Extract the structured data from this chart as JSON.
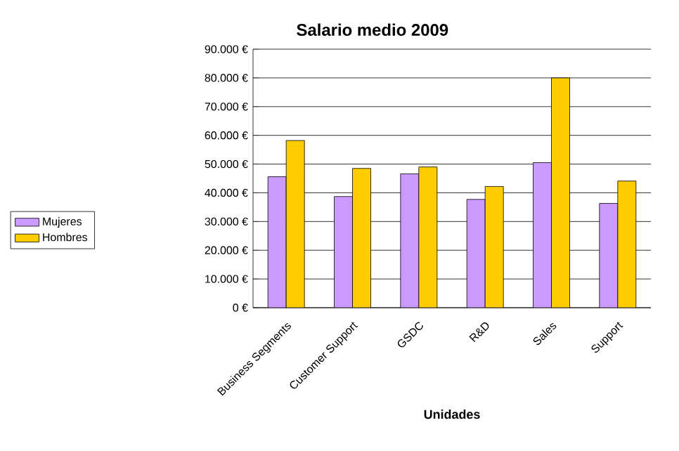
{
  "chart_data": {
    "type": "bar",
    "title": "Salario medio 2009",
    "xlabel": "Unidades",
    "categories": [
      "Business Segments",
      "Customer Support",
      "GSDC",
      "R&D",
      "Sales",
      "Support"
    ],
    "series": [
      {
        "name": "Mujeres",
        "color": "#cc99ff",
        "values": [
          45600,
          38700,
          46600,
          37700,
          50500,
          36300
        ]
      },
      {
        "name": "Hombres",
        "color": "#ffcc00",
        "values": [
          58200,
          48500,
          49000,
          42200,
          80000,
          44100
        ]
      }
    ],
    "ylim": [
      0,
      90000
    ],
    "yticks": [
      {
        "value": 0,
        "label": "0 €"
      },
      {
        "value": 10000,
        "label": "10.000 €"
      },
      {
        "value": 20000,
        "label": "20.000 €"
      },
      {
        "value": 30000,
        "label": "30.000 €"
      },
      {
        "value": 40000,
        "label": "40.000 €"
      },
      {
        "value": 50000,
        "label": "50.000 €"
      },
      {
        "value": 60000,
        "label": "60.000 €"
      },
      {
        "value": 70000,
        "label": "70.000 €"
      },
      {
        "value": 80000,
        "label": "80.000 €"
      },
      {
        "value": 90000,
        "label": "90.000 €"
      }
    ],
    "grid": "y",
    "legend": "left"
  }
}
